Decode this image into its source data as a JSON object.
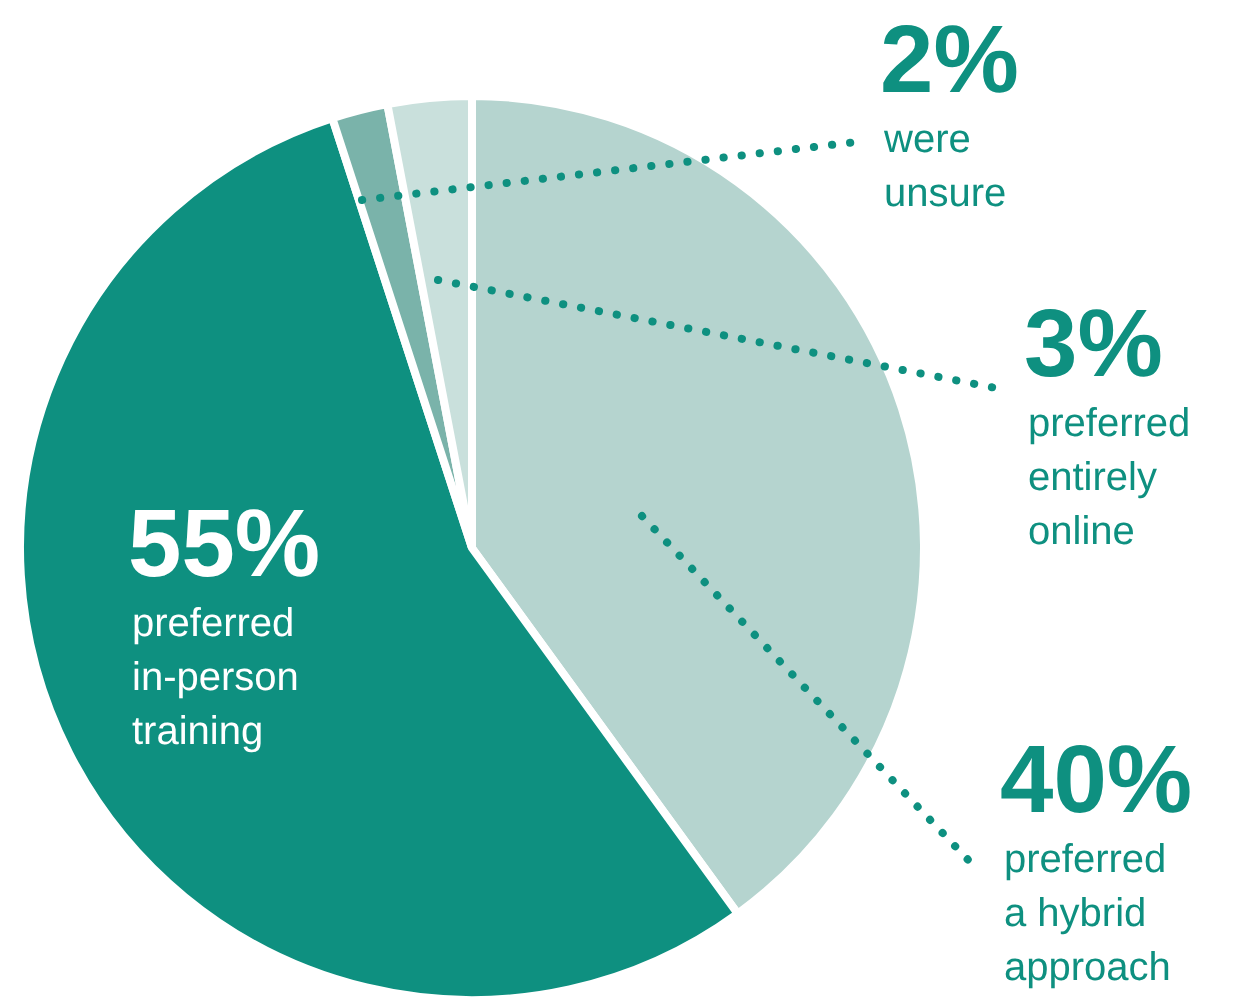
{
  "chart_data": {
    "type": "pie",
    "categories": [
      "preferred\na hybrid\napproach",
      "preferred\nin-person\ntraining",
      "were\nunsure",
      "preferred\nentirely\nonline"
    ],
    "values": [
      40,
      55,
      2,
      3
    ],
    "colors": [
      "#b5d4cf",
      "#0e9080",
      "#7ab3aa",
      "#c9e0dc"
    ],
    "value_labels": [
      "40%",
      "55%",
      "2%",
      "3%"
    ]
  }
}
